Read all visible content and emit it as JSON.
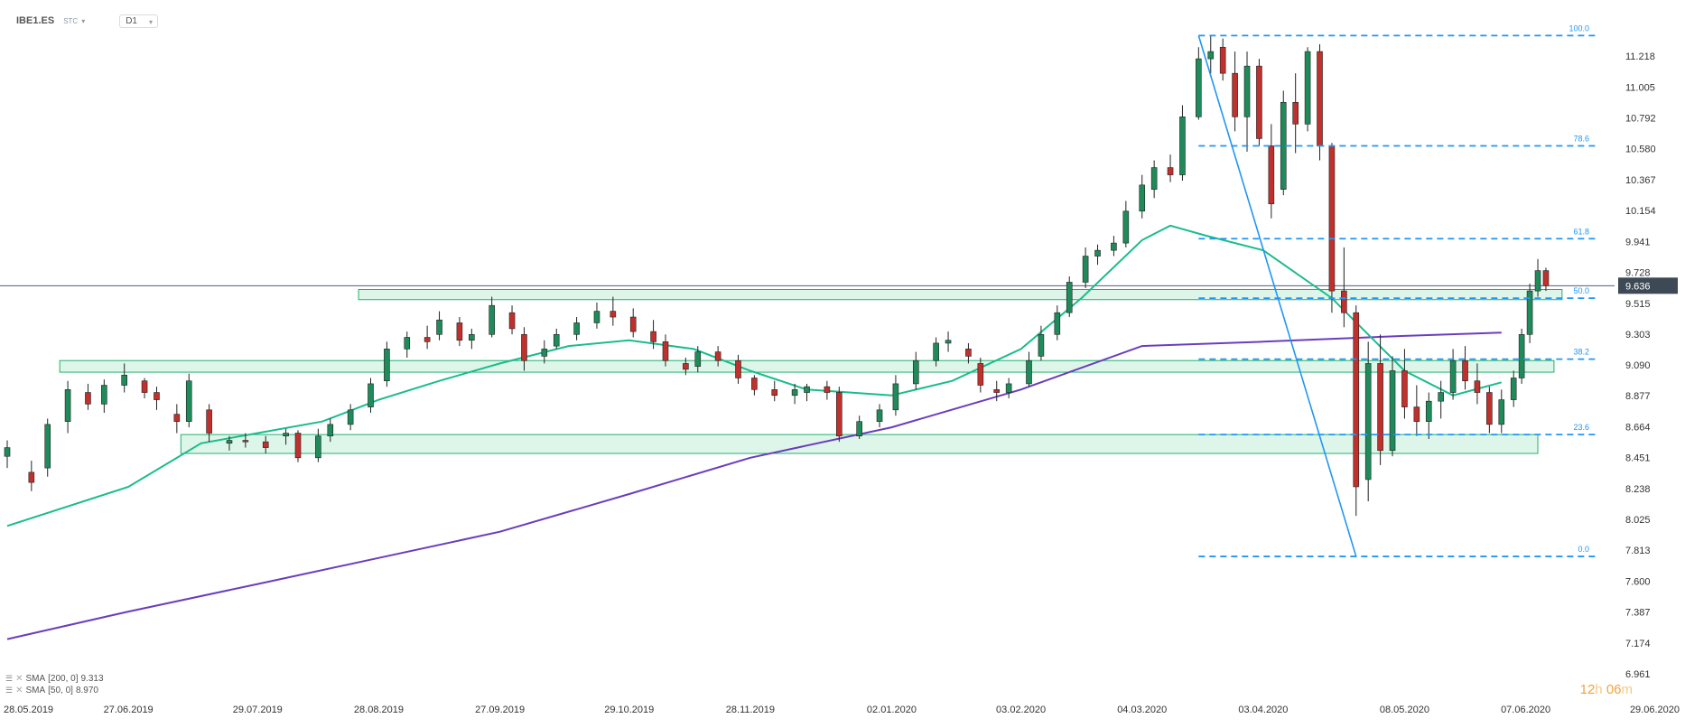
{
  "header": {
    "symbol": "IBE1.ES",
    "source": "STC",
    "timeframe": "D1"
  },
  "legend": [
    {
      "name": "SMA",
      "params": "[200, 0]",
      "value": "9.313",
      "color": "#6a3dbd"
    },
    {
      "name": "SMA",
      "params": "[50, 0]",
      "value": "8.970",
      "color": "#1abc8c"
    }
  ],
  "timer": {
    "hours": "12",
    "h_unit": "h",
    "minutes": "06",
    "m_unit": "m"
  },
  "chart_data": {
    "type": "candlestick",
    "ylim": [
      6.961,
      11.431
    ],
    "y_ticks": [
      "11.218",
      "11.005",
      "10.792",
      "10.580",
      "10.367",
      "10.154",
      "9.941",
      "9.728",
      "9.515",
      "9.303",
      "9.090",
      "8.877",
      "8.664",
      "8.451",
      "8.238",
      "8.025",
      "7.813",
      "7.600",
      "7.387",
      "7.174",
      "6.961"
    ],
    "x_ticks": [
      "28.05.2019",
      "27.06.2019",
      "29.07.2019",
      "28.08.2019",
      "27.09.2019",
      "29.10.2019",
      "28.11.2019",
      "02.01.2020",
      "03.02.2020",
      "04.03.2020",
      "03.04.2020",
      "08.05.2020",
      "07.06.2020",
      "29.06.2020"
    ],
    "current_price": "9.636",
    "current_price_value": 9.636,
    "colors": {
      "up": "#1f8a5a",
      "down": "#c0302c",
      "fib": "#2196f3",
      "zone_fill": "#c8f0dc",
      "zone_stroke": "#22b06e",
      "sma200": "#6a3dbd",
      "sma50": "#1abc8c"
    },
    "fibonacci": [
      {
        "label": "100.0",
        "value": 11.36
      },
      {
        "label": "78.6",
        "value": 10.6
      },
      {
        "label": "61.8",
        "value": 9.96
      },
      {
        "label": "50.0",
        "value": 9.55
      },
      {
        "label": "38.2",
        "value": 9.13
      },
      {
        "label": "23.6",
        "value": 8.61
      },
      {
        "label": "0.0",
        "value": 7.77
      }
    ],
    "zones": [
      {
        "x_start": "23.08.2019",
        "x_end": "16.06.2020",
        "y_low": 9.54,
        "y_high": 9.61
      },
      {
        "x_start": "10.06.2019",
        "x_end": "14.06.2020",
        "y_low": 9.04,
        "y_high": 9.12
      },
      {
        "x_start": "10.07.2019",
        "x_end": "10.06.2020",
        "y_low": 8.48,
        "y_high": 8.61
      }
    ],
    "ohlc": [
      {
        "d": "28.05.2019",
        "o": 8.46,
        "h": 8.57,
        "l": 8.38,
        "c": 8.52
      },
      {
        "d": "03.06.2019",
        "o": 8.35,
        "h": 8.43,
        "l": 8.22,
        "c": 8.28
      },
      {
        "d": "07.06.2019",
        "o": 8.38,
        "h": 8.72,
        "l": 8.32,
        "c": 8.68
      },
      {
        "d": "12.06.2019",
        "o": 8.7,
        "h": 8.98,
        "l": 8.62,
        "c": 8.92
      },
      {
        "d": "17.06.2019",
        "o": 8.9,
        "h": 8.96,
        "l": 8.78,
        "c": 8.82
      },
      {
        "d": "21.06.2019",
        "o": 8.82,
        "h": 8.99,
        "l": 8.76,
        "c": 8.95
      },
      {
        "d": "26.06.2019",
        "o": 8.95,
        "h": 9.1,
        "l": 8.9,
        "c": 9.02
      },
      {
        "d": "01.07.2019",
        "o": 8.98,
        "h": 9.0,
        "l": 8.86,
        "c": 8.9
      },
      {
        "d": "04.07.2019",
        "o": 8.9,
        "h": 8.94,
        "l": 8.78,
        "c": 8.85
      },
      {
        "d": "09.07.2019",
        "o": 8.75,
        "h": 8.82,
        "l": 8.62,
        "c": 8.7
      },
      {
        "d": "12.07.2019",
        "o": 8.7,
        "h": 9.03,
        "l": 8.66,
        "c": 8.98
      },
      {
        "d": "17.07.2019",
        "o": 8.78,
        "h": 8.82,
        "l": 8.56,
        "c": 8.62
      },
      {
        "d": "22.07.2019",
        "o": 8.55,
        "h": 8.6,
        "l": 8.5,
        "c": 8.57
      },
      {
        "d": "26.07.2019",
        "o": 8.57,
        "h": 8.62,
        "l": 8.52,
        "c": 8.56
      },
      {
        "d": "31.07.2019",
        "o": 8.56,
        "h": 8.6,
        "l": 8.48,
        "c": 8.52
      },
      {
        "d": "05.08.2019",
        "o": 8.6,
        "h": 8.65,
        "l": 8.54,
        "c": 8.62
      },
      {
        "d": "08.08.2019",
        "o": 8.62,
        "h": 8.64,
        "l": 8.42,
        "c": 8.45
      },
      {
        "d": "13.08.2019",
        "o": 8.45,
        "h": 8.65,
        "l": 8.42,
        "c": 8.6
      },
      {
        "d": "16.08.2019",
        "o": 8.6,
        "h": 8.72,
        "l": 8.56,
        "c": 8.68
      },
      {
        "d": "21.08.2019",
        "o": 8.68,
        "h": 8.82,
        "l": 8.64,
        "c": 8.78
      },
      {
        "d": "26.08.2019",
        "o": 8.8,
        "h": 9.0,
        "l": 8.76,
        "c": 8.96
      },
      {
        "d": "30.08.2019",
        "o": 8.98,
        "h": 9.25,
        "l": 8.94,
        "c": 9.2
      },
      {
        "d": "04.09.2019",
        "o": 9.2,
        "h": 9.32,
        "l": 9.14,
        "c": 9.28
      },
      {
        "d": "09.09.2019",
        "o": 9.28,
        "h": 9.36,
        "l": 9.2,
        "c": 9.25
      },
      {
        "d": "12.09.2019",
        "o": 9.3,
        "h": 9.46,
        "l": 9.26,
        "c": 9.4
      },
      {
        "d": "17.09.2019",
        "o": 9.38,
        "h": 9.42,
        "l": 9.22,
        "c": 9.26
      },
      {
        "d": "20.09.2019",
        "o": 9.26,
        "h": 9.34,
        "l": 9.2,
        "c": 9.3
      },
      {
        "d": "25.09.2019",
        "o": 9.3,
        "h": 9.56,
        "l": 9.28,
        "c": 9.5
      },
      {
        "d": "30.09.2019",
        "o": 9.45,
        "h": 9.5,
        "l": 9.3,
        "c": 9.34
      },
      {
        "d": "03.10.2019",
        "o": 9.3,
        "h": 9.35,
        "l": 9.05,
        "c": 9.12
      },
      {
        "d": "08.10.2019",
        "o": 9.15,
        "h": 9.26,
        "l": 9.1,
        "c": 9.2
      },
      {
        "d": "11.10.2019",
        "o": 9.22,
        "h": 9.34,
        "l": 9.2,
        "c": 9.3
      },
      {
        "d": "16.10.2019",
        "o": 9.3,
        "h": 9.42,
        "l": 9.26,
        "c": 9.38
      },
      {
        "d": "21.10.2019",
        "o": 9.38,
        "h": 9.52,
        "l": 9.34,
        "c": 9.46
      },
      {
        "d": "25.10.2019",
        "o": 9.46,
        "h": 9.56,
        "l": 9.36,
        "c": 9.42
      },
      {
        "d": "30.10.2019",
        "o": 9.42,
        "h": 9.48,
        "l": 9.28,
        "c": 9.32
      },
      {
        "d": "04.11.2019",
        "o": 9.32,
        "h": 9.4,
        "l": 9.2,
        "c": 9.25
      },
      {
        "d": "07.11.2019",
        "o": 9.25,
        "h": 9.3,
        "l": 9.08,
        "c": 9.12
      },
      {
        "d": "12.11.2019",
        "o": 9.1,
        "h": 9.14,
        "l": 9.02,
        "c": 9.06
      },
      {
        "d": "15.11.2019",
        "o": 9.08,
        "h": 9.22,
        "l": 9.04,
        "c": 9.18
      },
      {
        "d": "20.11.2019",
        "o": 9.18,
        "h": 9.22,
        "l": 9.08,
        "c": 9.12
      },
      {
        "d": "25.11.2019",
        "o": 9.12,
        "h": 9.16,
        "l": 8.96,
        "c": 9.0
      },
      {
        "d": "29.11.2019",
        "o": 9.0,
        "h": 9.02,
        "l": 8.88,
        "c": 8.92
      },
      {
        "d": "04.12.2019",
        "o": 8.92,
        "h": 8.98,
        "l": 8.84,
        "c": 8.88
      },
      {
        "d": "09.12.2019",
        "o": 8.88,
        "h": 8.96,
        "l": 8.82,
        "c": 8.92
      },
      {
        "d": "12.12.2019",
        "o": 8.9,
        "h": 8.96,
        "l": 8.84,
        "c": 8.94
      },
      {
        "d": "17.12.2019",
        "o": 8.94,
        "h": 8.98,
        "l": 8.85,
        "c": 8.9
      },
      {
        "d": "20.12.2019",
        "o": 8.9,
        "h": 8.94,
        "l": 8.56,
        "c": 8.6
      },
      {
        "d": "25.12.2019",
        "o": 8.6,
        "h": 8.74,
        "l": 8.58,
        "c": 8.7
      },
      {
        "d": "30.12.2019",
        "o": 8.7,
        "h": 8.82,
        "l": 8.66,
        "c": 8.78
      },
      {
        "d": "03.01.2020",
        "o": 8.78,
        "h": 9.02,
        "l": 8.74,
        "c": 8.96
      },
      {
        "d": "08.01.2020",
        "o": 8.96,
        "h": 9.18,
        "l": 8.92,
        "c": 9.12
      },
      {
        "d": "13.01.2020",
        "o": 9.12,
        "h": 9.28,
        "l": 9.08,
        "c": 9.24
      },
      {
        "d": "16.01.2020",
        "o": 9.24,
        "h": 9.32,
        "l": 9.18,
        "c": 9.26
      },
      {
        "d": "21.01.2020",
        "o": 9.2,
        "h": 9.24,
        "l": 9.1,
        "c": 9.15
      },
      {
        "d": "24.01.2020",
        "o": 9.1,
        "h": 9.14,
        "l": 8.9,
        "c": 8.95
      },
      {
        "d": "28.01.2020",
        "o": 8.92,
        "h": 8.98,
        "l": 8.84,
        "c": 8.9
      },
      {
        "d": "31.01.2020",
        "o": 8.9,
        "h": 9.0,
        "l": 8.86,
        "c": 8.96
      },
      {
        "d": "05.02.2020",
        "o": 8.96,
        "h": 9.18,
        "l": 8.94,
        "c": 9.12
      },
      {
        "d": "08.02.2020",
        "o": 9.15,
        "h": 9.36,
        "l": 9.12,
        "c": 9.3
      },
      {
        "d": "12.02.2020",
        "o": 9.3,
        "h": 9.5,
        "l": 9.26,
        "c": 9.45
      },
      {
        "d": "15.02.2020",
        "o": 9.45,
        "h": 9.7,
        "l": 9.42,
        "c": 9.66
      },
      {
        "d": "19.02.2020",
        "o": 9.66,
        "h": 9.9,
        "l": 9.62,
        "c": 9.84
      },
      {
        "d": "22.02.2020",
        "o": 9.84,
        "h": 9.92,
        "l": 9.78,
        "c": 9.88
      },
      {
        "d": "26.02.2020",
        "o": 9.88,
        "h": 9.98,
        "l": 9.84,
        "c": 9.93
      },
      {
        "d": "29.02.2020",
        "o": 9.93,
        "h": 10.22,
        "l": 9.9,
        "c": 10.15
      },
      {
        "d": "04.03.2020",
        "o": 10.15,
        "h": 10.4,
        "l": 10.1,
        "c": 10.33
      },
      {
        "d": "07.03.2020",
        "o": 10.3,
        "h": 10.5,
        "l": 10.24,
        "c": 10.45
      },
      {
        "d": "11.03.2020",
        "o": 10.45,
        "h": 10.54,
        "l": 10.35,
        "c": 10.4
      },
      {
        "d": "14.03.2020",
        "o": 10.4,
        "h": 10.88,
        "l": 10.36,
        "c": 10.8
      },
      {
        "d": "18.03.2020",
        "o": 10.8,
        "h": 11.28,
        "l": 10.78,
        "c": 11.2
      },
      {
        "d": "21.03.2020",
        "o": 11.2,
        "h": 11.36,
        "l": 11.1,
        "c": 11.25
      },
      {
        "d": "24.03.2020",
        "o": 11.28,
        "h": 11.34,
        "l": 11.05,
        "c": 11.1
      },
      {
        "d": "27.03.2020",
        "o": 11.1,
        "h": 11.25,
        "l": 10.7,
        "c": 10.8
      },
      {
        "d": "30.03.2020",
        "o": 10.8,
        "h": 11.25,
        "l": 10.56,
        "c": 11.15
      },
      {
        "d": "02.04.2020",
        "o": 11.15,
        "h": 11.2,
        "l": 10.6,
        "c": 10.65
      },
      {
        "d": "05.04.2020",
        "o": 10.6,
        "h": 10.75,
        "l": 10.1,
        "c": 10.2
      },
      {
        "d": "08.04.2020",
        "o": 10.3,
        "h": 10.98,
        "l": 10.26,
        "c": 10.9
      },
      {
        "d": "11.04.2020",
        "o": 10.9,
        "h": 11.1,
        "l": 10.55,
        "c": 10.75
      },
      {
        "d": "14.04.2020",
        "o": 10.75,
        "h": 11.28,
        "l": 10.7,
        "c": 11.25
      },
      {
        "d": "17.04.2020",
        "o": 11.25,
        "h": 11.3,
        "l": 10.5,
        "c": 10.6
      },
      {
        "d": "20.04.2020",
        "o": 10.6,
        "h": 10.62,
        "l": 9.45,
        "c": 9.6
      },
      {
        "d": "23.04.2020",
        "o": 9.6,
        "h": 9.9,
        "l": 9.35,
        "c": 9.45
      },
      {
        "d": "26.04.2020",
        "o": 9.45,
        "h": 9.5,
        "l": 8.05,
        "c": 8.25
      },
      {
        "d": "29.04.2020",
        "o": 8.3,
        "h": 9.25,
        "l": 8.15,
        "c": 9.1
      },
      {
        "d": "02.05.2020",
        "o": 9.1,
        "h": 9.3,
        "l": 8.4,
        "c": 8.5
      },
      {
        "d": "05.05.2020",
        "o": 8.5,
        "h": 9.15,
        "l": 8.46,
        "c": 9.05
      },
      {
        "d": "08.05.2020",
        "o": 9.05,
        "h": 9.2,
        "l": 8.72,
        "c": 8.8
      },
      {
        "d": "11.05.2020",
        "o": 8.8,
        "h": 8.95,
        "l": 8.6,
        "c": 8.7
      },
      {
        "d": "14.05.2020",
        "o": 8.7,
        "h": 8.9,
        "l": 8.58,
        "c": 8.84
      },
      {
        "d": "17.05.2020",
        "o": 8.84,
        "h": 8.98,
        "l": 8.72,
        "c": 8.9
      },
      {
        "d": "20.05.2020",
        "o": 8.9,
        "h": 9.2,
        "l": 8.85,
        "c": 9.12
      },
      {
        "d": "23.05.2020",
        "o": 9.12,
        "h": 9.22,
        "l": 8.92,
        "c": 8.98
      },
      {
        "d": "26.05.2020",
        "o": 8.98,
        "h": 9.1,
        "l": 8.82,
        "c": 8.9
      },
      {
        "d": "29.05.2020",
        "o": 8.9,
        "h": 8.94,
        "l": 8.62,
        "c": 8.68
      },
      {
        "d": "01.06.2020",
        "o": 8.68,
        "h": 8.92,
        "l": 8.62,
        "c": 8.85
      },
      {
        "d": "04.06.2020",
        "o": 8.85,
        "h": 9.05,
        "l": 8.8,
        "c": 9.0
      },
      {
        "d": "06.06.2020",
        "o": 9.0,
        "h": 9.34,
        "l": 8.96,
        "c": 9.3
      },
      {
        "d": "08.06.2020",
        "o": 9.3,
        "h": 9.65,
        "l": 9.24,
        "c": 9.6
      },
      {
        "d": "10.06.2020",
        "o": 9.6,
        "h": 9.82,
        "l": 9.56,
        "c": 9.74
      },
      {
        "d": "12.06.2020",
        "o": 9.74,
        "h": 9.76,
        "l": 9.6,
        "c": 9.636
      }
    ],
    "sma50": [
      {
        "d": "28.05.2019",
        "v": 7.98
      },
      {
        "d": "27.06.2019",
        "v": 8.25
      },
      {
        "d": "15.07.2019",
        "v": 8.55
      },
      {
        "d": "29.07.2019",
        "v": 8.62
      },
      {
        "d": "14.08.2019",
        "v": 8.7
      },
      {
        "d": "28.08.2019",
        "v": 8.85
      },
      {
        "d": "12.09.2019",
        "v": 8.98
      },
      {
        "d": "27.09.2019",
        "v": 9.1
      },
      {
        "d": "14.10.2019",
        "v": 9.22
      },
      {
        "d": "29.10.2019",
        "v": 9.26
      },
      {
        "d": "14.11.2019",
        "v": 9.2
      },
      {
        "d": "28.11.2019",
        "v": 9.05
      },
      {
        "d": "12.12.2019",
        "v": 8.92
      },
      {
        "d": "02.01.2020",
        "v": 8.88
      },
      {
        "d": "17.01.2020",
        "v": 8.98
      },
      {
        "d": "03.02.2020",
        "v": 9.2
      },
      {
        "d": "18.02.2020",
        "v": 9.55
      },
      {
        "d": "04.03.2020",
        "v": 9.95
      },
      {
        "d": "11.03.2020",
        "v": 10.05
      },
      {
        "d": "20.03.2020",
        "v": 9.98
      },
      {
        "d": "03.04.2020",
        "v": 9.88
      },
      {
        "d": "20.04.2020",
        "v": 9.55
      },
      {
        "d": "08.05.2020",
        "v": 9.05
      },
      {
        "d": "20.05.2020",
        "v": 8.88
      },
      {
        "d": "01.06.2020",
        "v": 8.97
      }
    ],
    "sma200": [
      {
        "d": "28.05.2019",
        "v": 7.2
      },
      {
        "d": "27.06.2019",
        "v": 7.39
      },
      {
        "d": "29.07.2019",
        "v": 7.58
      },
      {
        "d": "28.08.2019",
        "v": 7.76
      },
      {
        "d": "27.09.2019",
        "v": 7.94
      },
      {
        "d": "29.10.2019",
        "v": 8.2
      },
      {
        "d": "28.11.2019",
        "v": 8.45
      },
      {
        "d": "02.01.2020",
        "v": 8.66
      },
      {
        "d": "03.02.2020",
        "v": 8.92
      },
      {
        "d": "04.03.2020",
        "v": 9.22
      },
      {
        "d": "03.04.2020",
        "v": 9.25
      },
      {
        "d": "08.05.2020",
        "v": 9.29
      },
      {
        "d": "01.06.2020",
        "v": 9.313
      }
    ]
  }
}
